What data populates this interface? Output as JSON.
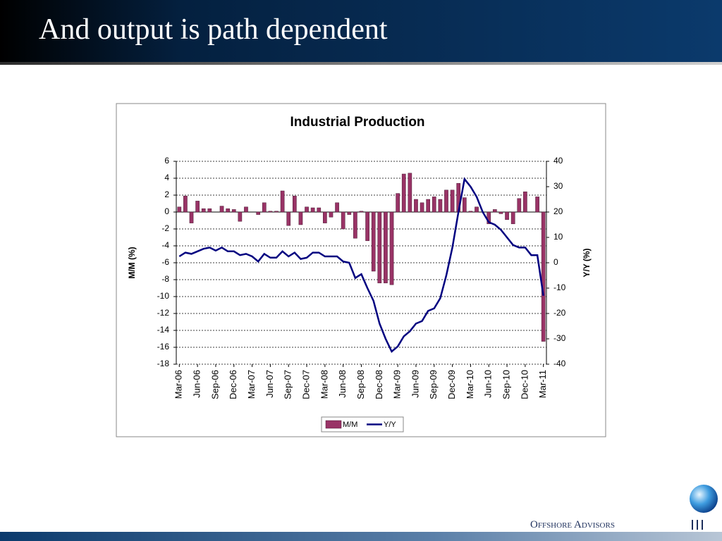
{
  "slide": {
    "title": "And output is path dependent"
  },
  "footer": {
    "brand": "Offshore Advisors"
  },
  "chart_data": {
    "type": "bar",
    "title": "Industrial Production",
    "y_label": "M/M (%)",
    "y2_label": "Y/Y (%)",
    "categories": [
      "Mar-06",
      null,
      null,
      "Jun-06",
      null,
      null,
      "Sep-06",
      null,
      null,
      "Dec-06",
      null,
      null,
      "Mar-07",
      null,
      null,
      "Jun-07",
      null,
      null,
      "Sep-07",
      null,
      null,
      "Dec-07",
      null,
      null,
      "Mar-08",
      null,
      null,
      "Jun-08",
      null,
      null,
      "Sep-08",
      null,
      null,
      "Dec-08",
      null,
      null,
      "Mar-09",
      null,
      null,
      "Jun-09",
      null,
      null,
      "Sep-09",
      null,
      null,
      "Dec-09",
      null,
      null,
      "Mar-10",
      null,
      null,
      "Jun-10",
      null,
      null,
      "Sep-10",
      null,
      null,
      "Dec-10",
      null,
      null,
      "Mar-11"
    ],
    "series": [
      {
        "name": "M/M",
        "type": "bar",
        "color": "#993366",
        "axis": "y",
        "values": [
          0.6,
          1.9,
          -1.3,
          1.3,
          0.4,
          0.4,
          0.0,
          0.7,
          0.4,
          0.3,
          -1.1,
          0.6,
          0.0,
          -0.3,
          1.1,
          0.1,
          0.1,
          2.5,
          -1.6,
          1.9,
          -1.5,
          0.6,
          0.5,
          0.5,
          -1.3,
          -0.6,
          1.1,
          -2.0,
          -0.3,
          -3.1,
          0.1,
          -3.4,
          -7.0,
          -8.4,
          -8.4,
          -8.6,
          2.2,
          4.5,
          4.6,
          1.5,
          1.1,
          1.5,
          1.8,
          1.5,
          2.6,
          2.6,
          3.4,
          1.7,
          0.1,
          0.6,
          0.0,
          -1.4,
          0.3,
          -0.2,
          -0.9,
          -1.4,
          1.6,
          2.4,
          0.0,
          1.8,
          -15.3
        ]
      },
      {
        "name": "Y/Y",
        "type": "line",
        "color": "#000080",
        "axis": "y2",
        "values": [
          2.5,
          4,
          3.5,
          4.5,
          5.5,
          6,
          4.8,
          6,
          4.5,
          4.5,
          3,
          3.5,
          2.5,
          0.5,
          3.5,
          2,
          2,
          4.5,
          2.5,
          4,
          1.5,
          2,
          4,
          4,
          2.5,
          2.5,
          2.5,
          0.5,
          0,
          -6,
          -4.5,
          -10,
          -15,
          -24,
          -30,
          -35,
          -33,
          -29,
          -27,
          -24,
          -23,
          -19,
          -18,
          -14,
          -5,
          6,
          20,
          33,
          30,
          26,
          20,
          16,
          15,
          13,
          10,
          7,
          6,
          6,
          3,
          3,
          -13
        ]
      }
    ],
    "ylim": [
      -18,
      6
    ],
    "yticks": [
      -18,
      -16,
      -14,
      -12,
      -10,
      -8,
      -6,
      -4,
      -2,
      0,
      2,
      4,
      6
    ],
    "y2lim": [
      -40,
      40
    ],
    "y2ticks": [
      -40,
      -30,
      -20,
      -10,
      0,
      10,
      20,
      30,
      40
    ],
    "grid": true,
    "legend": "bottom"
  }
}
